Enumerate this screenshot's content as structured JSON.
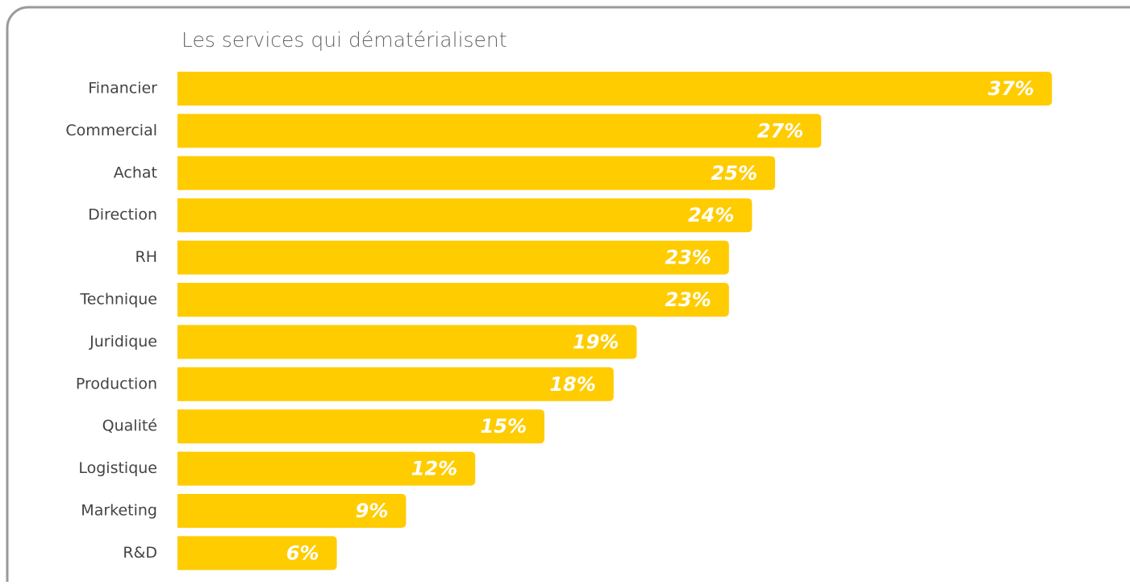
{
  "chart_data": {
    "type": "bar",
    "orientation": "horizontal",
    "title": "Les services qui dématérialisent",
    "categories": [
      "Financier",
      "Commercial",
      "Achat",
      "Direction",
      "RH",
      "Technique",
      "Juridique",
      "Production",
      "Qualité",
      "Logistique",
      "Marketing",
      "R&D"
    ],
    "values": [
      37,
      27,
      25,
      24,
      23,
      23,
      19,
      18,
      15,
      12,
      9,
      6
    ],
    "value_labels": [
      "37%",
      "27%",
      "25%",
      "24%",
      "23%",
      "23%",
      "19%",
      "18%",
      "15%",
      "12%",
      "9%",
      "6%"
    ],
    "color": "#ffcc00"
  }
}
